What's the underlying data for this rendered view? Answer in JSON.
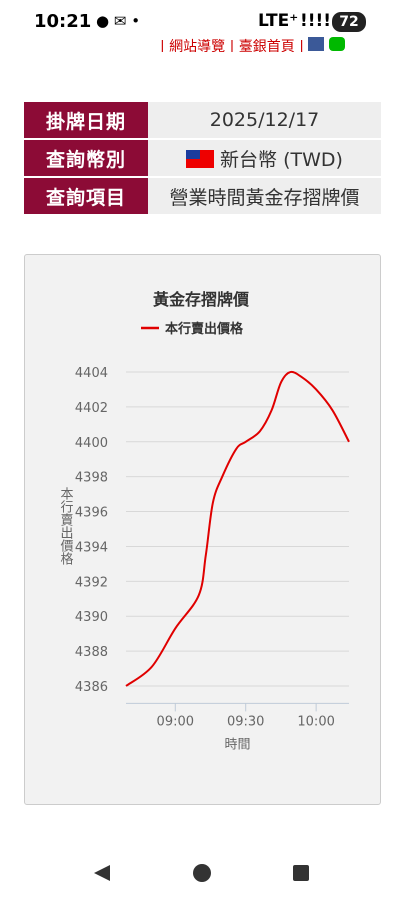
{
  "status_bar": {
    "time": "10:21",
    "network": "LTE⁺",
    "battery": "72"
  },
  "top_links": [
    "| 網站導覽 |",
    "臺銀首頁 |"
  ],
  "table": {
    "rows": [
      [
        "掛牌日期",
        "2025/12/17"
      ],
      [
        "查詢幣別",
        "新台幣 (TWD)"
      ],
      [
        "查詢項目",
        "營業時間黃金存摺牌價"
      ]
    ]
  },
  "chart_data": {
    "type": "line",
    "title": "黃金存摺牌價",
    "x_label": "時間",
    "y_label": "本行賣出價格",
    "x": [
      "08:39",
      "08:50",
      "09:00",
      "09:10",
      "09:13",
      "09:16",
      "09:20",
      "09:26",
      "09:30",
      "09:36",
      "09:41",
      "09:45",
      "09:49",
      "09:54",
      "10:00",
      "10:07",
      "10:14"
    ],
    "series": [
      {
        "name": "本行賣出價格",
        "color": "#e00000",
        "values": [
          4386,
          4387.1,
          4389.3,
          4391.2,
          4393.5,
          4396.5,
          4398,
          4399.6,
          4400,
          4400.6,
          4401.8,
          4403.4,
          4404,
          4403.7,
          4403,
          4401.8,
          4400
        ]
      }
    ],
    "xlim": [
      "08:39",
      "10:14"
    ],
    "xticks": [
      "09:00",
      "09:30",
      "10:00"
    ],
    "ylim": [
      4385,
      4405
    ],
    "yticks": [
      4386,
      4388,
      4390,
      4392,
      4394,
      4396,
      4398,
      4400,
      4402,
      4404
    ],
    "grid": true
  }
}
